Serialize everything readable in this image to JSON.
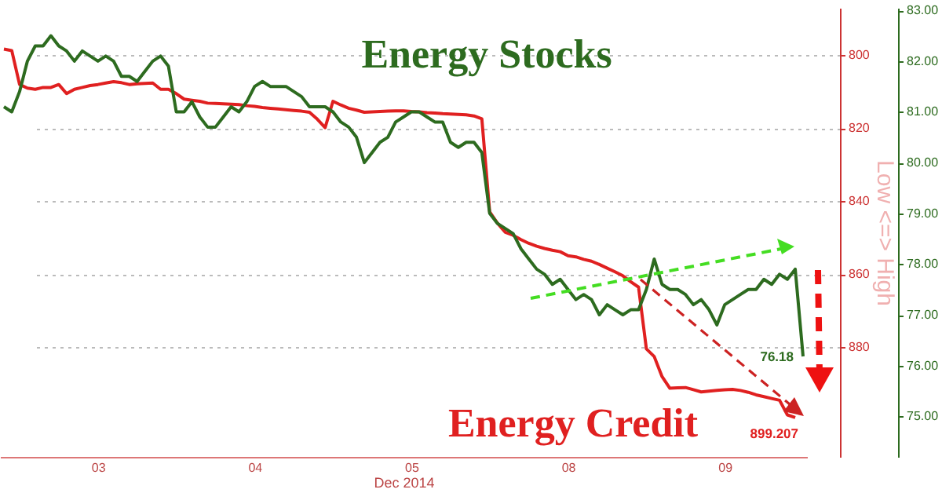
{
  "chart_data": {
    "type": "line",
    "y2label": "Low <=> High",
    "xlabel": "Dec 2014",
    "y2lim": [
      910,
      787
    ],
    "y3lim": [
      74.2,
      83.05
    ],
    "grid": "y",
    "categories": [
      null,
      null,
      null,
      null,
      null,
      null,
      null,
      null,
      null,
      null,
      null,
      null,
      "03",
      null,
      null,
      null,
      null,
      null,
      null,
      null,
      null,
      null,
      null,
      null,
      null,
      null,
      null,
      null,
      null,
      null,
      null,
      null,
      "04",
      null,
      null,
      null,
      null,
      null,
      null,
      null,
      null,
      null,
      null,
      null,
      null,
      null,
      null,
      null,
      null,
      null,
      null,
      null,
      "05",
      null,
      null,
      null,
      null,
      null,
      null,
      null,
      null,
      null,
      null,
      null,
      null,
      null,
      null,
      null,
      null,
      null,
      null,
      null,
      "08",
      null,
      null,
      null,
      null,
      null,
      null,
      null,
      null,
      null,
      null,
      null,
      null,
      null,
      null,
      null,
      null,
      null,
      null,
      null,
      "09",
      null,
      null,
      null,
      null,
      null,
      null,
      null,
      null,
      null,
      null
    ],
    "y2ticks": [
      800,
      820,
      840,
      860,
      880
    ],
    "y3ticks": [
      {
        "value": 75,
        "label": "75.00"
      },
      {
        "value": 76,
        "label": "76.00"
      },
      {
        "value": 77,
        "label": "77.00"
      },
      {
        "value": 78,
        "label": "78.00"
      },
      {
        "value": 79,
        "label": "79.00"
      },
      {
        "value": 80,
        "label": "80.00"
      },
      {
        "value": 81,
        "label": "81.00"
      },
      {
        "value": 82,
        "label": "82.00"
      },
      {
        "value": 83,
        "label": "83.00"
      }
    ],
    "series": [
      {
        "name": "Energy Credit",
        "color": "#e02020",
        "axis": "y2",
        "values": [
          798.3,
          798.7,
          808,
          809,
          809.3,
          808.8,
          808.8,
          808,
          810.5,
          809.3,
          808.8,
          808.3,
          808,
          807.6,
          807.2,
          807.5,
          808,
          807.8,
          807.7,
          807.6,
          809.3,
          809.3,
          810.5,
          812,
          812.3,
          812.6,
          813.1,
          813.2,
          813.3,
          813.4,
          813.5,
          813.8,
          814,
          814.3,
          814.5,
          814.7,
          814.9,
          815.1,
          815.3,
          815.6,
          817.5,
          819.8,
          812.6,
          813.6,
          814.5,
          815,
          815.6,
          815.5,
          815.4,
          815.3,
          815.2,
          815.2,
          815.4,
          815.5,
          815.7,
          815.8,
          816,
          816.1,
          816.2,
          816.3,
          816.6,
          817.4,
          842.9,
          846,
          848.5,
          849.3,
          850.5,
          851.5,
          852.3,
          852.9,
          853.4,
          853.8,
          854.9,
          855.2,
          855.9,
          856.4,
          857.3,
          858.3,
          859.3,
          860.4,
          862,
          863.5,
          880.4,
          882.5,
          888,
          891.2,
          891.1,
          891,
          891.6,
          892.2,
          892,
          891.8,
          891.6,
          891.5,
          891.8,
          892.3,
          893,
          893.5,
          894,
          894.5,
          898.5,
          899.207,
          null
        ],
        "value_labels": [
          null,
          null,
          null,
          null,
          null,
          null,
          null,
          null,
          null,
          null,
          null,
          null,
          null,
          null,
          null,
          null,
          null,
          null,
          null,
          null,
          null,
          null,
          null,
          null,
          null,
          null,
          null,
          null,
          null,
          null,
          null,
          null,
          null,
          null,
          null,
          null,
          null,
          null,
          null,
          null,
          null,
          null,
          null,
          null,
          null,
          null,
          null,
          null,
          null,
          null,
          null,
          null,
          null,
          null,
          null,
          null,
          null,
          null,
          null,
          null,
          null,
          null,
          null,
          null,
          null,
          null,
          null,
          null,
          null,
          null,
          null,
          null,
          null,
          null,
          null,
          null,
          null,
          null,
          null,
          null,
          null,
          null,
          null,
          null,
          null,
          null,
          null,
          null,
          null,
          null,
          null,
          null,
          null,
          null,
          null,
          null,
          null,
          null,
          null,
          null,
          null,
          "899.207",
          null
        ]
      },
      {
        "name": "Energy Stocks",
        "color": "#2d6b1f",
        "axis": "y3",
        "values": [
          81.1,
          81,
          81.4,
          82,
          82.3,
          82.3,
          82.5,
          82.3,
          82.2,
          82,
          82.2,
          82.1,
          82,
          82.1,
          82,
          81.7,
          81.7,
          81.6,
          81.8,
          82,
          82.1,
          81.9,
          81,
          81,
          81.2,
          80.9,
          80.7,
          80.7,
          80.9,
          81.1,
          81,
          81.2,
          81.5,
          81.6,
          81.5,
          81.5,
          81.5,
          81.4,
          81.3,
          81.1,
          81.1,
          81.1,
          81,
          80.8,
          80.7,
          80.5,
          80,
          80.2,
          80.4,
          80.5,
          80.8,
          80.9,
          81,
          81,
          80.9,
          80.8,
          80.8,
          80.4,
          80.3,
          80.4,
          80.4,
          80.2,
          79,
          78.8,
          78.7,
          78.6,
          78.3,
          78.1,
          77.9,
          77.8,
          77.6,
          77.7,
          77.5,
          77.3,
          77.4,
          77.3,
          77,
          77.2,
          77.1,
          77,
          77.1,
          77.1,
          77.5,
          78.1,
          77.6,
          77.5,
          77.5,
          77.4,
          77.2,
          77.3,
          77.1,
          76.8,
          77.2,
          77.3,
          77.4,
          77.5,
          77.5,
          77.7,
          77.6,
          77.8,
          77.7,
          77.9,
          76.18
        ],
        "value_labels": [
          null,
          null,
          null,
          null,
          null,
          null,
          null,
          null,
          null,
          null,
          null,
          null,
          null,
          null,
          null,
          null,
          null,
          null,
          null,
          null,
          null,
          null,
          null,
          null,
          null,
          null,
          null,
          null,
          null,
          null,
          null,
          null,
          null,
          null,
          null,
          null,
          null,
          null,
          null,
          null,
          null,
          null,
          null,
          null,
          null,
          null,
          null,
          null,
          null,
          null,
          null,
          null,
          null,
          null,
          null,
          null,
          null,
          null,
          null,
          null,
          null,
          null,
          null,
          null,
          null,
          null,
          null,
          null,
          null,
          null,
          null,
          null,
          null,
          null,
          null,
          null,
          null,
          null,
          null,
          null,
          null,
          null,
          null,
          null,
          null,
          null,
          null,
          null,
          null,
          null,
          null,
          null,
          null,
          null,
          null,
          null,
          null,
          null,
          null,
          null,
          null,
          null,
          "76.18"
        ]
      }
    ]
  }
}
